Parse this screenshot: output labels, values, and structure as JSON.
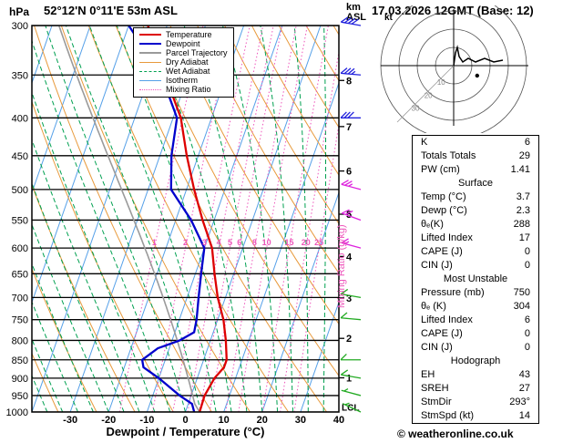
{
  "header": {
    "pressure_unit": "hPa",
    "station": "52°12'N 0°11'E 53m ASL",
    "datetime": "17.03.2026 12GMT (Base: 12)",
    "km_label": "km",
    "asl_label": "ASL"
  },
  "footer": {
    "credit": "© weatheronline.co.uk"
  },
  "chart_data": {
    "type": "skewt",
    "xlabel": "Dewpoint / Temperature (°C)",
    "x_ticks": [
      -30,
      -20,
      -10,
      0,
      10,
      20,
      30,
      40
    ],
    "x_range": [
      -40,
      40
    ],
    "p_range": [
      300,
      1000
    ],
    "pressure_levels": [
      300,
      350,
      400,
      450,
      500,
      550,
      600,
      650,
      700,
      750,
      800,
      850,
      900,
      950,
      1000
    ],
    "isotherm": {
      "min": -100,
      "max": 40,
      "step": 10
    },
    "dry_adiabat": {
      "min": 240,
      "max": 450,
      "step": 10
    },
    "wet_adiabat": {
      "min": -40,
      "max": 36,
      "step": 4
    },
    "mixing_ratio": {
      "label": "Mixing Ratio (g/kg)",
      "values": [
        1,
        2,
        3,
        4,
        5,
        6,
        8,
        10,
        15,
        20,
        25
      ],
      "label_pressure": 600
    },
    "km_ticks": [
      {
        "km": 8,
        "p": 356
      },
      {
        "km": 7,
        "p": 411
      },
      {
        "km": 6,
        "p": 472
      },
      {
        "km": 5,
        "p": 540
      },
      {
        "km": 4,
        "p": 616
      },
      {
        "km": 3,
        "p": 701
      },
      {
        "km": 2,
        "p": 795
      },
      {
        "km": 1,
        "p": 899
      }
    ],
    "lcl": {
      "label": "LCL",
      "pressure": 985
    },
    "colors": {
      "temperature": "#dd0000",
      "dewpoint": "#0000cc",
      "parcel": "#9a9a9a",
      "dry_adiabat": "#e89a3c",
      "wet_adiabat": "#00a050",
      "isotherm": "#55a0e8",
      "mixing_ratio": "#ee55bb",
      "isobar": "#000000",
      "wind_upper": "#2222dd",
      "wind_mid": "#dd22dd",
      "wind_low": "#22aa22"
    },
    "legend": [
      {
        "label": "Temperature",
        "color": "#dd0000",
        "style": "solid",
        "width": 2
      },
      {
        "label": "Dewpoint",
        "color": "#0000cc",
        "style": "solid",
        "width": 2
      },
      {
        "label": "Parcel Trajectory",
        "color": "#9a9a9a",
        "style": "solid",
        "width": 2
      },
      {
        "label": "Dry Adiabat",
        "color": "#e89a3c",
        "style": "solid",
        "width": 1
      },
      {
        "label": "Wet Adiabat",
        "color": "#00a050",
        "style": "dashed",
        "width": 1
      },
      {
        "label": "Isotherm",
        "color": "#55a0e8",
        "style": "solid",
        "width": 1
      },
      {
        "label": "Mixing Ratio",
        "color": "#ee55bb",
        "style": "dotted",
        "width": 1
      }
    ],
    "temperature_profile": [
      [
        1000,
        3.7
      ],
      [
        950,
        3.5
      ],
      [
        900,
        4.5
      ],
      [
        870,
        6.0
      ],
      [
        850,
        6.0
      ],
      [
        800,
        4.0
      ],
      [
        750,
        1.5
      ],
      [
        700,
        -2.0
      ],
      [
        650,
        -5.0
      ],
      [
        600,
        -8.0
      ],
      [
        550,
        -13.0
      ],
      [
        500,
        -18.0
      ],
      [
        450,
        -23.0
      ],
      [
        400,
        -28.0
      ],
      [
        350,
        -36.0
      ],
      [
        300,
        -45.0
      ]
    ],
    "dewpoint_profile": [
      [
        1000,
        2.3
      ],
      [
        975,
        1.0
      ],
      [
        950,
        -3.0
      ],
      [
        900,
        -10.0
      ],
      [
        870,
        -15.0
      ],
      [
        850,
        -16.0
      ],
      [
        820,
        -13.0
      ],
      [
        800,
        -8.0
      ],
      [
        780,
        -5.0
      ],
      [
        750,
        -5.5
      ],
      [
        700,
        -7.0
      ],
      [
        650,
        -8.5
      ],
      [
        600,
        -10.0
      ],
      [
        550,
        -16.0
      ],
      [
        500,
        -24.0
      ],
      [
        450,
        -27.0
      ],
      [
        400,
        -29.0
      ],
      [
        350,
        -37.0
      ],
      [
        300,
        -50.0
      ]
    ],
    "surface_parcel": {
      "temp": 3.7,
      "dewp": 2.3
    },
    "winds": [
      {
        "p": 300,
        "spd": 40,
        "dir": 280,
        "band": "upper"
      },
      {
        "p": 350,
        "spd": 35,
        "dir": 275,
        "band": "upper"
      },
      {
        "p": 400,
        "spd": 30,
        "dir": 270,
        "band": "upper"
      },
      {
        "p": 500,
        "spd": 25,
        "dir": 285,
        "band": "mid"
      },
      {
        "p": 550,
        "spd": 20,
        "dir": 290,
        "band": "mid"
      },
      {
        "p": 600,
        "spd": 15,
        "dir": 285,
        "band": "mid"
      },
      {
        "p": 700,
        "spd": 10,
        "dir": 280,
        "band": "low"
      },
      {
        "p": 750,
        "spd": 10,
        "dir": 275,
        "band": "low"
      },
      {
        "p": 850,
        "spd": 8,
        "dir": 270,
        "band": "low"
      },
      {
        "p": 900,
        "spd": 8,
        "dir": 280,
        "band": "low"
      },
      {
        "p": 950,
        "spd": 6,
        "dir": 285,
        "band": "low"
      },
      {
        "p": 1000,
        "spd": 5,
        "dir": 295,
        "band": "low"
      }
    ],
    "hodograph": {
      "unit_label": "kt",
      "rings": [
        10,
        20,
        30,
        40
      ],
      "ring_labels": [
        "10",
        "20",
        "30"
      ],
      "trace": [
        [
          0,
          0
        ],
        [
          1,
          7
        ],
        [
          2,
          10
        ],
        [
          3,
          5
        ],
        [
          5,
          2
        ],
        [
          8,
          4
        ],
        [
          12,
          2
        ],
        [
          17,
          4
        ],
        [
          22,
          2
        ],
        [
          27,
          3
        ]
      ],
      "storm_u": 12.9,
      "storm_v": -5.5
    }
  },
  "indices": {
    "sections": [
      {
        "header": "",
        "rows": [
          {
            "label": "K",
            "value": "6"
          },
          {
            "label": "Totals Totals",
            "value": "29"
          },
          {
            "label": "PW (cm)",
            "value": "1.41"
          }
        ]
      },
      {
        "header": "Surface",
        "rows": [
          {
            "label": "Temp (°C)",
            "value": "3.7"
          },
          {
            "label": "Dewp (°C)",
            "value": "2.3"
          },
          {
            "label": "θₑ(K)",
            "value": "288"
          },
          {
            "label": "Lifted Index",
            "value": "17"
          },
          {
            "label": "CAPE (J)",
            "value": "0"
          },
          {
            "label": "CIN (J)",
            "value": "0"
          }
        ]
      },
      {
        "header": "Most Unstable",
        "rows": [
          {
            "label": "Pressure (mb)",
            "value": "750"
          },
          {
            "label": "θₑ (K)",
            "value": "304"
          },
          {
            "label": "Lifted Index",
            "value": "6"
          },
          {
            "label": "CAPE (J)",
            "value": "0"
          },
          {
            "label": "CIN (J)",
            "value": "0"
          }
        ]
      },
      {
        "header": "Hodograph",
        "rows": [
          {
            "label": "EH",
            "value": "43"
          },
          {
            "label": "SREH",
            "value": "27"
          },
          {
            "label": "StmDir",
            "value": "293°"
          },
          {
            "label": "StmSpd (kt)",
            "value": "14"
          }
        ]
      }
    ]
  }
}
